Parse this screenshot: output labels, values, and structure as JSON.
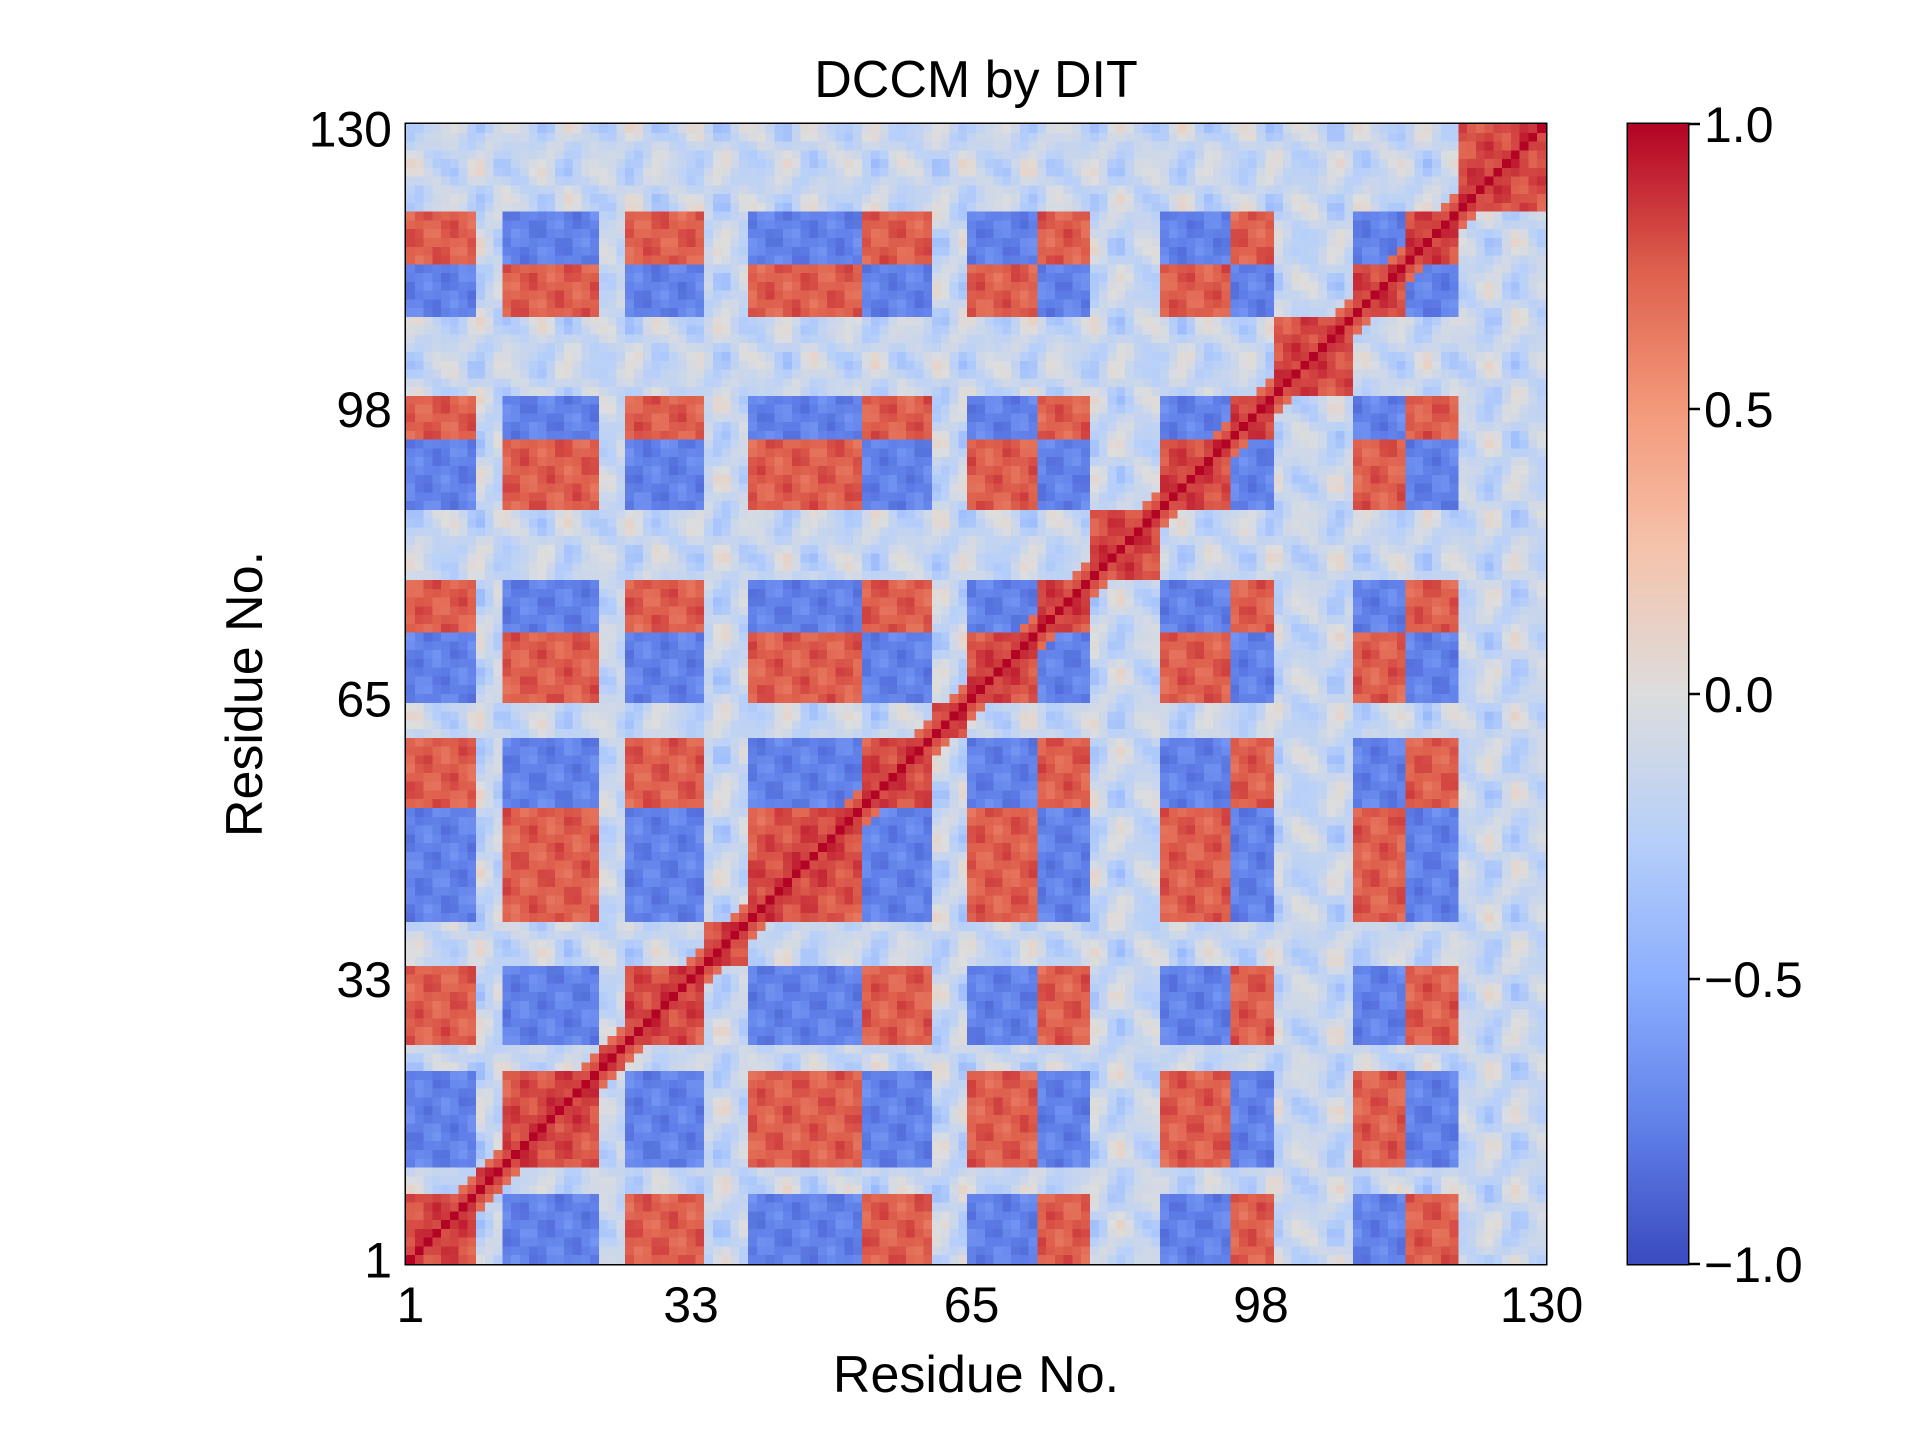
{
  "chart_data": {
    "type": "heatmap",
    "title": "DCCM by DIT",
    "xlabel": "Residue No.",
    "ylabel": "Residue No.",
    "n_residues": 130,
    "xlim": [
      1,
      130
    ],
    "ylim": [
      1,
      130
    ],
    "x_ticks": [
      "1",
      "33",
      "65",
      "98",
      "130"
    ],
    "y_ticks": [
      "1",
      "33",
      "65",
      "98",
      "130"
    ],
    "value_range": [
      -1.0,
      1.0
    ],
    "colormap": "coolwarm",
    "colorbar": {
      "ticks": [
        "−1.0",
        "−0.5",
        "0.0",
        "0.5",
        "1.0"
      ],
      "placement": "right"
    },
    "diagonal_value": 1.0,
    "segments": [
      {
        "start": 1,
        "end": 8,
        "group": "A"
      },
      {
        "start": 9,
        "end": 11,
        "group": "L"
      },
      {
        "start": 12,
        "end": 22,
        "group": "B"
      },
      {
        "start": 23,
        "end": 25,
        "group": "L"
      },
      {
        "start": 26,
        "end": 34,
        "group": "A"
      },
      {
        "start": 35,
        "end": 39,
        "group": "L"
      },
      {
        "start": 40,
        "end": 52,
        "group": "B"
      },
      {
        "start": 53,
        "end": 60,
        "group": "A"
      },
      {
        "start": 61,
        "end": 64,
        "group": "L"
      },
      {
        "start": 65,
        "end": 72,
        "group": "B"
      },
      {
        "start": 73,
        "end": 78,
        "group": "A"
      },
      {
        "start": 79,
        "end": 86,
        "group": "L"
      },
      {
        "start": 87,
        "end": 94,
        "group": "B"
      },
      {
        "start": 95,
        "end": 99,
        "group": "A"
      },
      {
        "start": 100,
        "end": 108,
        "group": "L"
      },
      {
        "start": 109,
        "end": 114,
        "group": "B"
      },
      {
        "start": 115,
        "end": 120,
        "group": "A"
      },
      {
        "start": 121,
        "end": 130,
        "group": "L"
      }
    ],
    "group_correlation": {
      "same": 0.75,
      "opposite": -0.75,
      "loop": -0.15
    }
  }
}
